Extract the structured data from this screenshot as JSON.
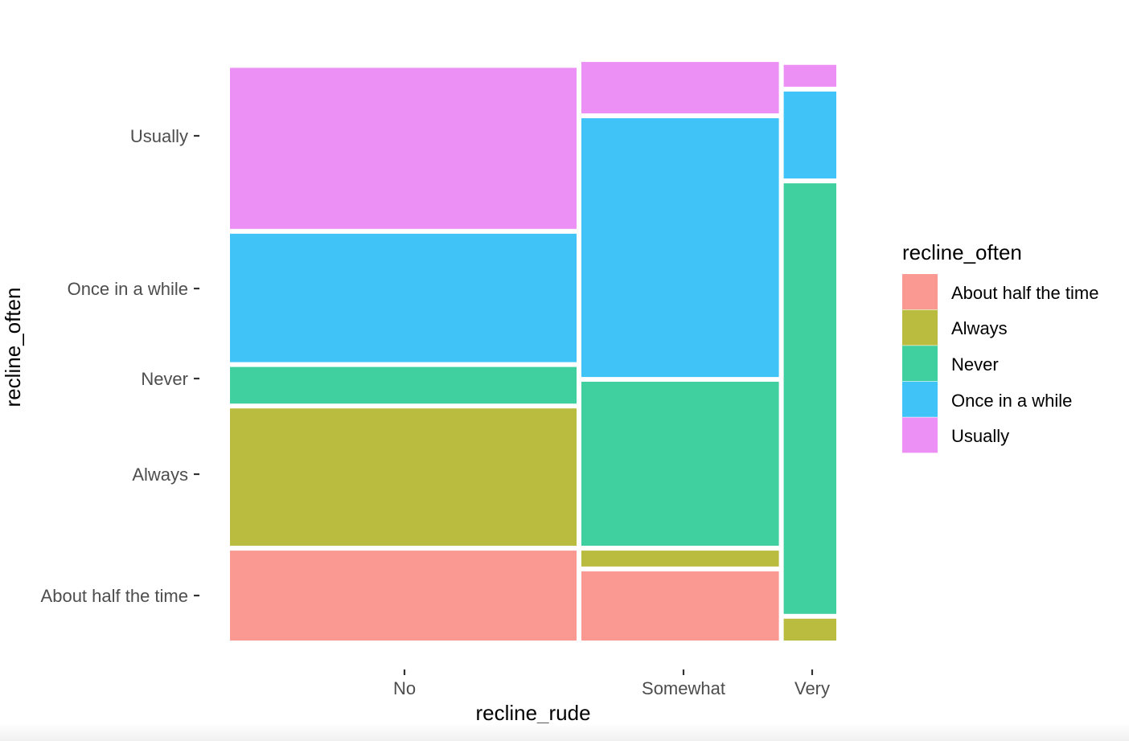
{
  "chart_data": {
    "type": "mosaic",
    "title": "",
    "xlabel": "recline_rude",
    "ylabel": "recline_often",
    "x_categories": [
      "No",
      "Somewhat",
      "Very"
    ],
    "x_widths": [
      0.575,
      0.331,
      0.094
    ],
    "y_tick_labels": [
      "About half the time",
      "Always",
      "Never",
      "Once in a while",
      "Usually"
    ],
    "fill_order_bottom_to_top": [
      "About half the time",
      "Always",
      "Never",
      "Once in a while",
      "Usually"
    ],
    "columns": [
      {
        "category": "No",
        "proportions": [
          0.16,
          0.24,
          0.07,
          0.225,
          0.28
        ]
      },
      {
        "category": "Somewhat",
        "proportions": [
          0.125,
          0.035,
          0.285,
          0.445,
          0.095
        ]
      },
      {
        "category": "Very",
        "proportions": [
          0.0,
          0.045,
          0.735,
          0.155,
          0.045
        ]
      }
    ],
    "legend": {
      "title": "recline_often",
      "entries": [
        {
          "label": "About half the time",
          "color": "#F8766D"
        },
        {
          "label": "Always",
          "color": "#A3A500"
        },
        {
          "label": "Never",
          "color": "#00BF7D"
        },
        {
          "label": "Once in a while",
          "color": "#00B0F6"
        },
        {
          "label": "Usually",
          "color": "#E76BF3"
        }
      ]
    },
    "fill_alpha": 0.75
  }
}
